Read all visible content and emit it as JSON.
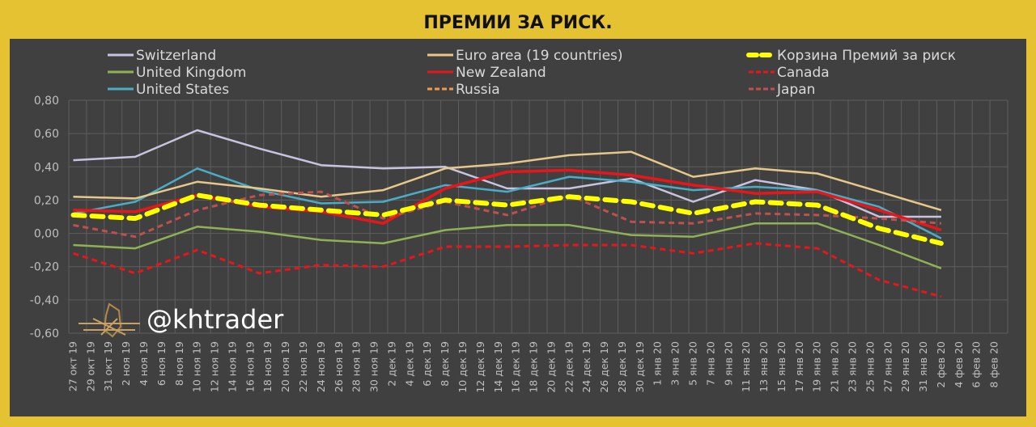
{
  "chart_data": {
    "type": "line",
    "title": "ПРЕМИИ ЗА РИСК.",
    "xlabel": "",
    "ylabel": "",
    "ylim": [
      -0.6,
      0.8
    ],
    "yticks": [
      "0,80",
      "0,60",
      "0,40",
      "0,20",
      "0,00",
      "-0,20",
      "-0,40",
      "-0,60"
    ],
    "ytick_values": [
      0.8,
      0.6,
      0.4,
      0.2,
      0.0,
      -0.2,
      -0.4,
      -0.6
    ],
    "grid": true,
    "legend_position": "top",
    "x_labels": [
      "27 окт 19",
      "29 окт 19",
      "31 окт 19",
      "2 ноя 19",
      "4 ноя 19",
      "6 ноя 19",
      "8 ноя 19",
      "10 ноя 19",
      "12 ноя 19",
      "14 ноя 19",
      "16 ноя 19",
      "18 ноя 19",
      "20 ноя 19",
      "22 ноя 19",
      "24 ноя 19",
      "26 ноя 19",
      "28 ноя 19",
      "30 ноя 19",
      "2 дек 19",
      "4 дек 19",
      "6 дек 19",
      "8 дек 19",
      "10 дек 19",
      "12 дек 19",
      "14 дек 19",
      "16 дек 19",
      "18 дек 19",
      "20 дек 19",
      "22 дек 19",
      "24 дек 19",
      "26 дек 19",
      "28 дек 19",
      "30 дек 19",
      "1 янв 20",
      "3 янв 20",
      "5 янв 20",
      "7 янв 20",
      "9 янв 20",
      "11 янв 20",
      "13 янв 20",
      "15 янв 20",
      "17 янв 20",
      "19 янв 20",
      "21 янв 20",
      "23 янв 20",
      "25 янв 20",
      "27 янв 20",
      "29 янв 20",
      "31 янв 20",
      "2 фев 20",
      "4 фев 20",
      "6 фев 20",
      "8 фев 20"
    ],
    "x_point_days": [
      0,
      7,
      14,
      21,
      28,
      35,
      42,
      49,
      56,
      63,
      70,
      77,
      84,
      91,
      98
    ],
    "x_total_days": 105,
    "series": [
      {
        "name": "Switzerland",
        "color": "#c9c3e0",
        "dash": "solid",
        "values": [
          0.44,
          0.46,
          0.62,
          0.51,
          0.41,
          0.39,
          0.4,
          0.27,
          0.27,
          0.33,
          0.19,
          0.32,
          0.26,
          0.1,
          0.1
        ]
      },
      {
        "name": "United Kingdom",
        "color": "#8fb255",
        "dash": "solid",
        "values": [
          -0.07,
          -0.09,
          0.04,
          0.01,
          -0.04,
          -0.06,
          0.02,
          0.05,
          0.05,
          -0.01,
          -0.02,
          0.06,
          0.06,
          -0.07,
          -0.21
        ]
      },
      {
        "name": "United States",
        "color": "#4bacc6",
        "dash": "solid",
        "values": [
          0.12,
          0.19,
          0.39,
          0.26,
          0.18,
          0.19,
          0.29,
          0.25,
          0.34,
          0.31,
          0.26,
          0.28,
          0.26,
          0.16,
          -0.03
        ]
      },
      {
        "name": "Euro area (19 countries)",
        "color": "#e6c88a",
        "dash": "solid",
        "values": [
          0.22,
          0.21,
          0.31,
          0.27,
          0.22,
          0.26,
          0.39,
          0.42,
          0.47,
          0.49,
          0.34,
          0.39,
          0.36,
          0.25,
          0.14
        ]
      },
      {
        "name": "New Zealand",
        "color": "#e8161b",
        "dash": "solid",
        "values": [
          0.14,
          0.13,
          0.23,
          0.16,
          0.13,
          0.06,
          0.27,
          0.37,
          0.38,
          0.35,
          0.29,
          0.24,
          0.25,
          0.14,
          0.02
        ]
      },
      {
        "name": "Russia",
        "color": "#f09a50",
        "dash": "dash",
        "values": []
      },
      {
        "name": "Корзина Премий за риск",
        "color": "#ffff00",
        "dash": "bigdash",
        "values": [
          0.11,
          0.09,
          0.23,
          0.17,
          0.14,
          0.11,
          0.2,
          0.17,
          0.22,
          0.19,
          0.12,
          0.19,
          0.17,
          0.03,
          -0.06
        ]
      },
      {
        "name": "Canada",
        "color": "#e8161b",
        "dash": "dash",
        "values": [
          -0.12,
          -0.24,
          -0.1,
          -0.24,
          -0.19,
          -0.2,
          -0.08,
          -0.08,
          -0.07,
          -0.07,
          -0.12,
          -0.06,
          -0.09,
          -0.28,
          -0.38
        ]
      },
      {
        "name": "Japan",
        "color": "#c0504d",
        "dash": "dash",
        "values": [
          0.05,
          -0.02,
          0.14,
          0.23,
          0.25,
          0.09,
          0.19,
          0.11,
          0.23,
          0.07,
          0.06,
          0.12,
          0.11,
          0.09,
          0.06
        ]
      }
    ]
  },
  "watermark": "@khtrader"
}
